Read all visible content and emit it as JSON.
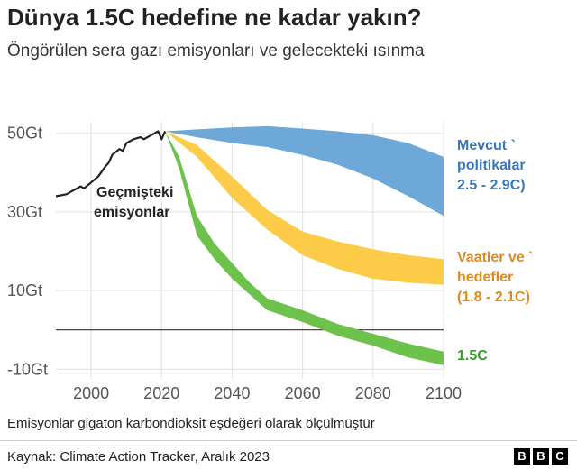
{
  "title": "Dünya 1.5C hedefine ne kadar yakın?",
  "subtitle": "Öngörülen sera gazı emisyonları ve gelecekteki ısınma",
  "note": "Emisyonlar gigaton karbondioksit eşdeğeri olarak ölçülmüştür",
  "source": "Kaynak: Climate Action Tracker, Aralık 2023",
  "logo_letters": [
    "B",
    "B",
    "C"
  ],
  "chart_data": {
    "type": "area",
    "xlim": [
      1990,
      2100
    ],
    "ylim": [
      -12,
      52
    ],
    "x_ticks": [
      2000,
      2020,
      2040,
      2060,
      2080,
      2100
    ],
    "x_tick_labels": [
      "2000",
      "2020",
      "2040",
      "2060",
      "2080",
      "2100"
    ],
    "y_ticks": [
      50,
      30,
      10,
      -10
    ],
    "y_tick_labels": [
      "50Gt",
      "30Gt",
      "10Gt",
      "-10Gt"
    ],
    "grid": true,
    "history": {
      "label": [
        "Geçmişteki",
        "emisyonlar"
      ],
      "color": "#222222",
      "x": [
        1990,
        1993,
        1995,
        1997,
        1998,
        2000,
        2002,
        2004,
        2005,
        2006,
        2008,
        2009,
        2010,
        2012,
        2014,
        2015,
        2016,
        2017,
        2018,
        2019,
        2020,
        2021
      ],
      "y": [
        34,
        34.5,
        35.5,
        36.5,
        36,
        37.5,
        39,
        41.5,
        42.5,
        44.5,
        46,
        45.5,
        47.5,
        48.5,
        49,
        48.5,
        49,
        49.5,
        50,
        50.5,
        48.5,
        50.5
      ]
    },
    "bands": [
      {
        "label": [
          "Mevcut `",
          "politikalar",
          "2.5 - 2.9C)"
        ],
        "color": "#6ea8d8",
        "label_color": "#3a77b8",
        "x": [
          2021,
          2030,
          2040,
          2050,
          2060,
          2070,
          2080,
          2090,
          2100
        ],
        "upper": [
          50.5,
          51,
          51.5,
          51.8,
          51.2,
          50.5,
          49.5,
          47.5,
          44
        ],
        "lower": [
          50.5,
          49,
          47.5,
          46.5,
          44.5,
          42,
          38.5,
          34,
          29
        ]
      },
      {
        "label": [
          "Vaatler ve `",
          "hedefler",
          "(1.8 - 2.1C)"
        ],
        "color": "#fccc48",
        "label_color": "#e08a1e",
        "x": [
          2021,
          2030,
          2040,
          2050,
          2060,
          2070,
          2080,
          2090,
          2100
        ],
        "upper": [
          50.5,
          47,
          39,
          30.5,
          25,
          22.5,
          20.5,
          19,
          18
        ],
        "lower": [
          50.5,
          44,
          33.5,
          25.5,
          19,
          15.5,
          13,
          12,
          11.5
        ]
      },
      {
        "label": [
          "1.5C"
        ],
        "color": "#6cc24a",
        "label_color": "#3a9a2e",
        "x": [
          2021,
          2025,
          2030,
          2035,
          2040,
          2045,
          2050,
          2060,
          2070,
          2080,
          2090,
          2100
        ],
        "upper": [
          50.5,
          44,
          29,
          22,
          17,
          12,
          8,
          5,
          1.5,
          -1,
          -3.5,
          -5.5
        ],
        "lower": [
          50.5,
          41,
          24,
          18,
          13,
          9,
          5,
          2,
          -1.5,
          -4,
          -7,
          -9
        ]
      }
    ],
    "zero_line": 0
  }
}
